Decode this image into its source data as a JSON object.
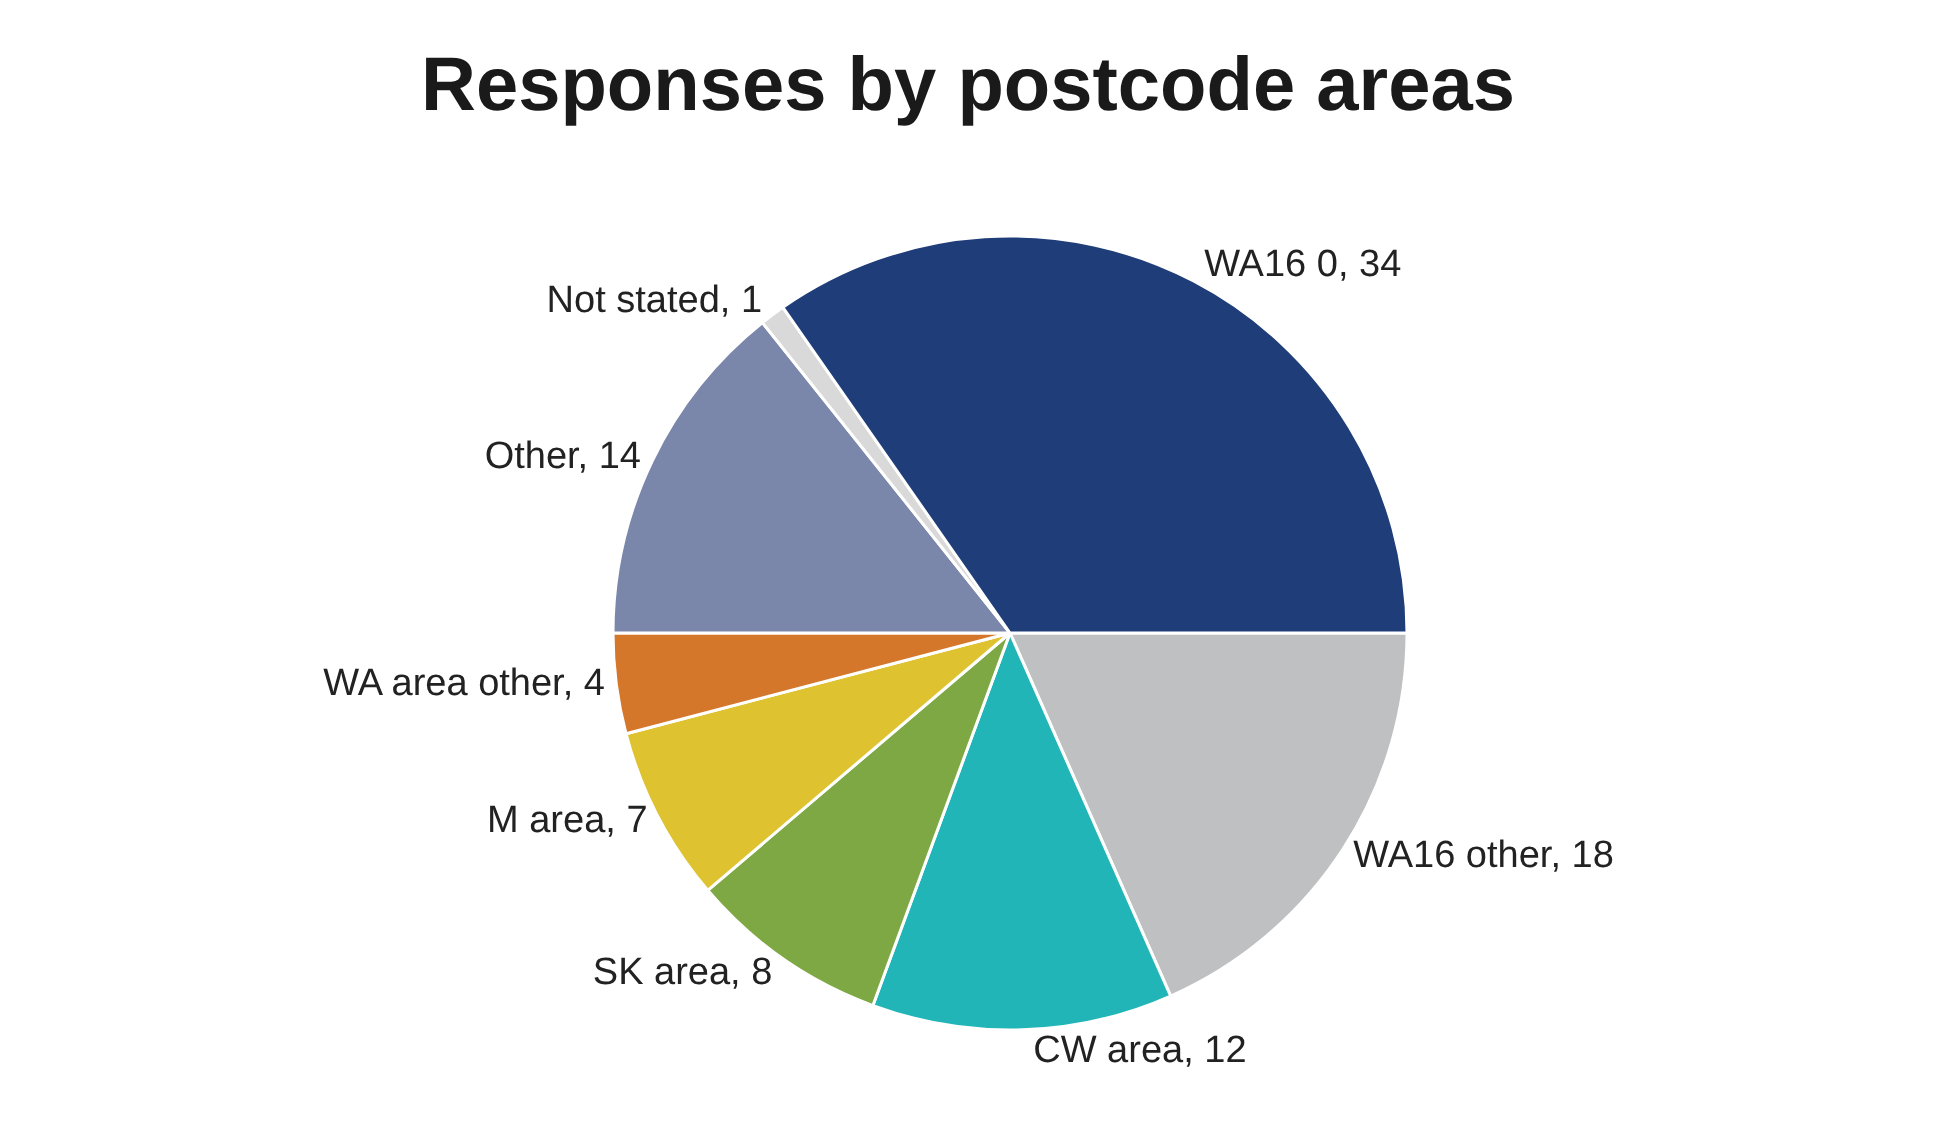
{
  "chart_data": {
    "type": "pie",
    "title": "Responses by postcode areas",
    "categories": [
      "WA16 other, 18",
      "CW area, 12",
      "SK area, 8",
      "M area, 7",
      "WA area other, 4",
      "Other, 14",
      "Not stated, 1",
      "WA16 0, 34"
    ],
    "values": [
      18,
      12,
      8,
      7,
      4,
      14,
      1,
      34
    ],
    "colors": [
      "#bfc0c2",
      "#22b5b8",
      "#7ea843",
      "#dfc22f",
      "#d4772b",
      "#7a86aa",
      "#d9d9d9",
      "#1f3d78"
    ],
    "legend": false
  }
}
